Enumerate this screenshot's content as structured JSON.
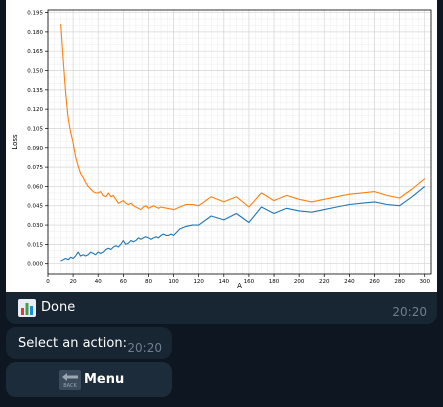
{
  "photo_message": {
    "caption_icon": "bar-chart-emoji-icon",
    "caption": "Done",
    "time": "20:20"
  },
  "select_message": {
    "text": "Select an action:",
    "time": "20:20"
  },
  "menu_button": {
    "icon": "back-arrow-icon",
    "icon_text": "BACK",
    "label": "Menu"
  },
  "colors": {
    "background": "#0e1621",
    "bubble": "#182533",
    "button": "#1d2c3b",
    "timestamp": "#6d7f8f",
    "series_1": "#1f77b4",
    "series_2": "#ff7f0e"
  },
  "chart_data": {
    "type": "line",
    "title": "",
    "xlabel": "A",
    "ylabel": "Loss",
    "xlim": [
      0,
      305
    ],
    "ylim": [
      -0.008,
      0.197
    ],
    "grid": true,
    "legend": "none",
    "xticks": [
      0,
      20,
      40,
      60,
      80,
      100,
      120,
      140,
      160,
      180,
      200,
      220,
      240,
      260,
      280,
      300
    ],
    "yticks": [
      0.0,
      0.015,
      0.03,
      0.045,
      0.06,
      0.075,
      0.09,
      0.105,
      0.12,
      0.135,
      0.15,
      0.165,
      0.18,
      0.195
    ],
    "ytick_labels": [
      "0.000",
      "0.015",
      "0.030",
      "0.045",
      "0.060",
      "0.075",
      "0.090",
      "0.105",
      "0.120",
      "0.135",
      "0.150",
      "0.165",
      "0.180",
      "0.195"
    ],
    "series": [
      {
        "color": "#1f77b4",
        "x": [
          10,
          12,
          14,
          16,
          18,
          20,
          22,
          24,
          26,
          28,
          30,
          32,
          34,
          36,
          38,
          40,
          42,
          44,
          46,
          48,
          50,
          52,
          54,
          56,
          58,
          60,
          62,
          64,
          66,
          68,
          70,
          72,
          74,
          76,
          78,
          80,
          82,
          84,
          86,
          88,
          90,
          92,
          94,
          96,
          98,
          100,
          105,
          110,
          115,
          120,
          130,
          140,
          150,
          160,
          170,
          180,
          190,
          200,
          210,
          220,
          230,
          240,
          250,
          260,
          270,
          280,
          290,
          300
        ],
        "y": [
          0.002,
          0.003,
          0.004,
          0.003,
          0.005,
          0.004,
          0.006,
          0.009,
          0.006,
          0.007,
          0.006,
          0.007,
          0.009,
          0.008,
          0.007,
          0.009,
          0.008,
          0.009,
          0.011,
          0.012,
          0.011,
          0.013,
          0.014,
          0.013,
          0.015,
          0.018,
          0.015,
          0.016,
          0.018,
          0.017,
          0.018,
          0.02,
          0.019,
          0.02,
          0.021,
          0.02,
          0.019,
          0.02,
          0.021,
          0.02,
          0.022,
          0.023,
          0.022,
          0.022,
          0.023,
          0.022,
          0.027,
          0.029,
          0.03,
          0.03,
          0.037,
          0.034,
          0.039,
          0.032,
          0.044,
          0.039,
          0.043,
          0.041,
          0.04,
          0.042,
          0.044,
          0.046,
          0.047,
          0.048,
          0.046,
          0.045,
          0.052,
          0.06
        ]
      },
      {
        "color": "#ff7f0e",
        "x": [
          10,
          12,
          14,
          16,
          18,
          20,
          22,
          24,
          26,
          28,
          30,
          32,
          34,
          36,
          38,
          40,
          42,
          44,
          46,
          48,
          50,
          52,
          54,
          56,
          58,
          60,
          62,
          64,
          66,
          68,
          70,
          72,
          74,
          76,
          78,
          80,
          82,
          84,
          86,
          88,
          90,
          95,
          100,
          105,
          110,
          115,
          120,
          130,
          140,
          150,
          160,
          170,
          180,
          190,
          200,
          210,
          220,
          230,
          240,
          250,
          260,
          270,
          280,
          290,
          300
        ],
        "y": [
          0.186,
          0.158,
          0.132,
          0.113,
          0.102,
          0.094,
          0.083,
          0.076,
          0.07,
          0.067,
          0.063,
          0.06,
          0.058,
          0.056,
          0.055,
          0.055,
          0.056,
          0.053,
          0.052,
          0.055,
          0.052,
          0.053,
          0.05,
          0.047,
          0.048,
          0.049,
          0.047,
          0.046,
          0.047,
          0.045,
          0.044,
          0.043,
          0.042,
          0.044,
          0.045,
          0.043,
          0.044,
          0.045,
          0.044,
          0.043,
          0.044,
          0.043,
          0.042,
          0.044,
          0.046,
          0.046,
          0.045,
          0.052,
          0.048,
          0.052,
          0.044,
          0.055,
          0.049,
          0.053,
          0.05,
          0.048,
          0.05,
          0.052,
          0.054,
          0.055,
          0.056,
          0.053,
          0.051,
          0.058,
          0.066
        ]
      }
    ]
  }
}
